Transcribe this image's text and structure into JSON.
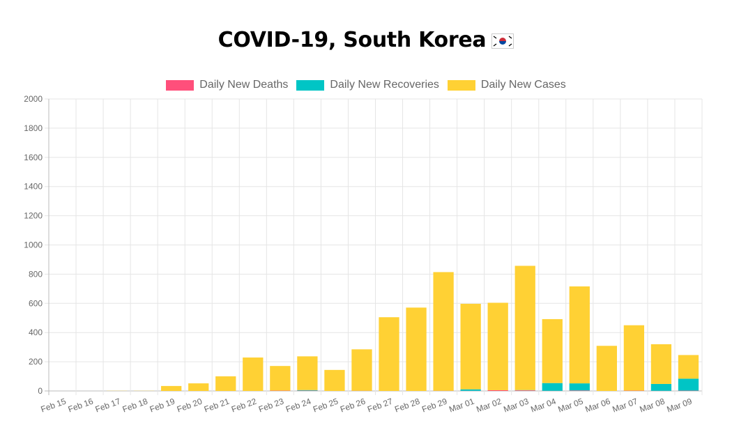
{
  "title": "COVID-19, South Korea",
  "chart_data": {
    "type": "bar",
    "stacked": true,
    "title": "COVID-19, South Korea",
    "xlabel": "",
    "ylabel": "",
    "ylim": [
      0,
      2000
    ],
    "yticks": [
      0,
      200,
      400,
      600,
      800,
      1000,
      1200,
      1400,
      1600,
      1800,
      2000
    ],
    "grid": true,
    "legend_position": "top",
    "categories": [
      "Feb 15",
      "Feb 16",
      "Feb 17",
      "Feb 18",
      "Feb 19",
      "Feb 20",
      "Feb 21",
      "Feb 22",
      "Feb 23",
      "Feb 24",
      "Feb 25",
      "Feb 26",
      "Feb 27",
      "Feb 28",
      "Feb 29",
      "Mar 01",
      "Mar 02",
      "Mar 03",
      "Mar 04",
      "Mar 05",
      "Mar 06",
      "Mar 07",
      "Mar 08",
      "Mar 09"
    ],
    "series": [
      {
        "name": "Daily New Deaths",
        "color": "#ff4f7b",
        "values": [
          0,
          0,
          0,
          0,
          0,
          0,
          0,
          0,
          2,
          2,
          0,
          1,
          0,
          0,
          1,
          1,
          5,
          4,
          1,
          3,
          0,
          2,
          1,
          2
        ]
      },
      {
        "name": "Daily New Recoveries",
        "color": "#00c5c5",
        "values": [
          0,
          0,
          0,
          0,
          0,
          0,
          0,
          0,
          0,
          4,
          0,
          0,
          0,
          0,
          0,
          10,
          0,
          2,
          53,
          49,
          0,
          0,
          47,
          82
        ]
      },
      {
        "name": "Daily New Cases",
        "color": "#ffd134",
        "values": [
          0,
          0,
          1,
          1,
          34,
          52,
          100,
          229,
          169,
          231,
          144,
          284,
          505,
          571,
          813,
          586,
          599,
          851,
          438,
          664,
          309,
          448,
          272,
          162
        ]
      }
    ]
  }
}
